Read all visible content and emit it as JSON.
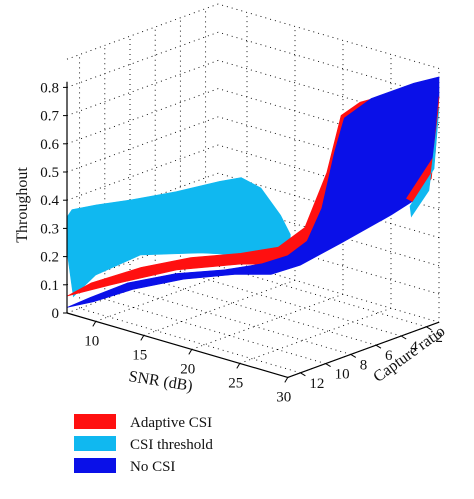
{
  "chart_data": {
    "type": "surface3d",
    "title": "",
    "xlabel": "SNR (dB)",
    "ylabel": "Capture ratio",
    "zlabel": "Throughout",
    "x_ticks": [
      "10",
      "15",
      "20",
      "25",
      "30"
    ],
    "y_ticks": [
      "2",
      "4",
      "6",
      "8",
      "10",
      "12"
    ],
    "z_ticks": [
      "0",
      "0.1",
      "0.2",
      "0.3",
      "0.4",
      "0.5",
      "0.6",
      "0.7",
      "0.8"
    ],
    "xlim": [
      7,
      30
    ],
    "ylim": [
      1,
      13
    ],
    "zlim": [
      0,
      0.8
    ],
    "grid": true,
    "legend_position": "bottom-left",
    "series": [
      {
        "name": "Adaptive CSI",
        "color": "#ff1010",
        "edge_front_x_y1": [
          [
            7,
            0.07
          ],
          [
            10,
            0.17
          ],
          [
            15,
            0.21
          ],
          [
            20,
            0.24
          ],
          [
            25,
            0.28
          ],
          [
            30,
            0.5
          ]
        ],
        "peak": 0.85
      },
      {
        "name": "CSI threshold",
        "color": "#10b8f0",
        "edge_front_x_y13": [
          [
            7,
            0.24
          ],
          [
            10,
            0.35
          ],
          [
            15,
            0.43
          ],
          [
            20,
            0.54
          ],
          [
            25,
            0.61
          ]
        ]
      },
      {
        "name": "No CSI",
        "color": "#0a10e8",
        "edge_front_x_y1": [
          [
            7,
            0.03
          ],
          [
            10,
            0.12
          ],
          [
            15,
            0.18
          ],
          [
            20,
            0.24
          ],
          [
            25,
            0.3
          ],
          [
            30,
            0.5
          ]
        ],
        "peak": 0.85
      }
    ]
  }
}
